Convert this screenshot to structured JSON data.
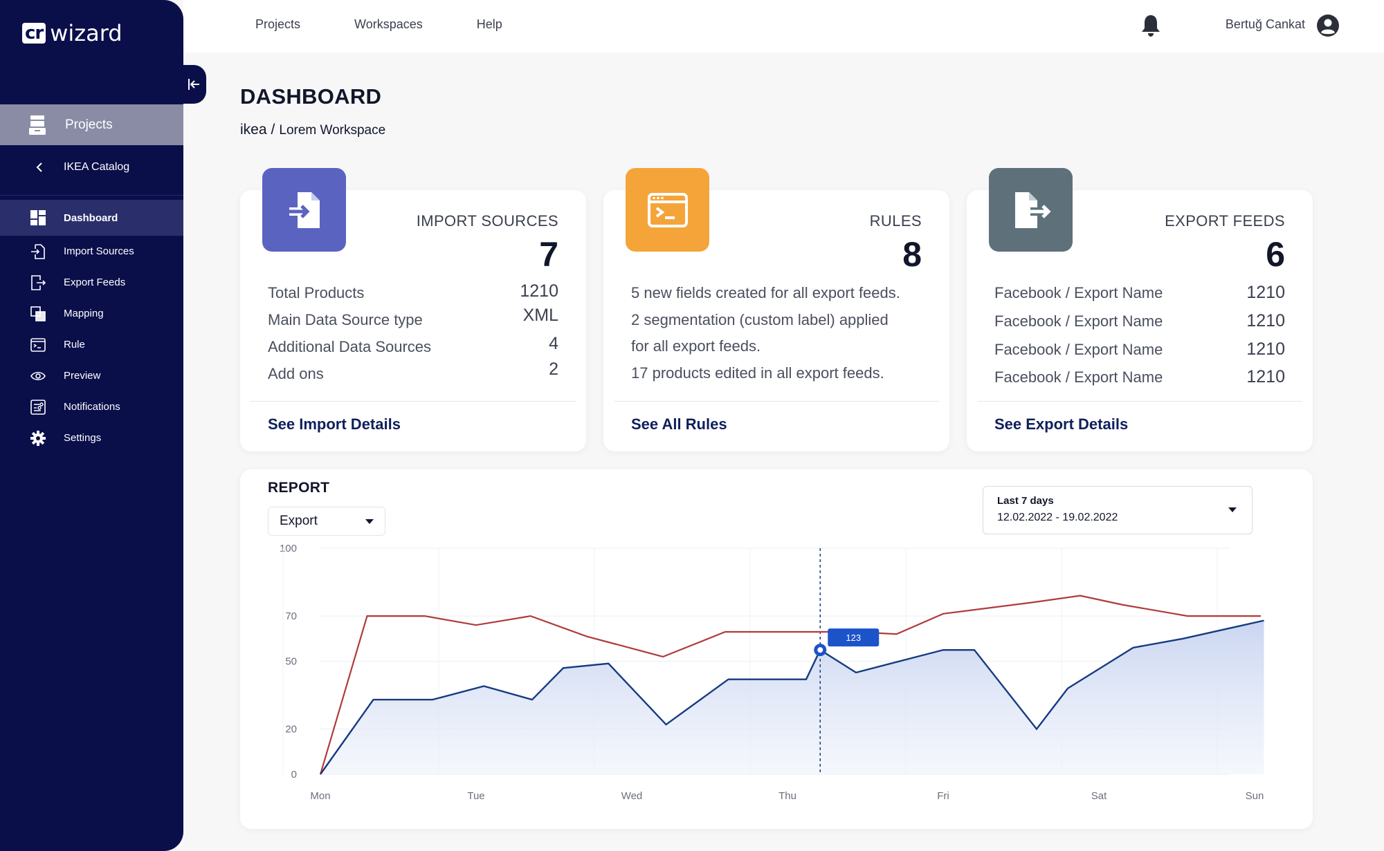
{
  "app": {
    "logo_box": "cr",
    "logo_text": "wizard"
  },
  "sidebar": {
    "projects_label": "Projects",
    "catalog_label": "IKEA Catalog",
    "items": [
      {
        "label": "Dashboard",
        "icon": "dashboard-icon",
        "active": true
      },
      {
        "label": "Import Sources",
        "icon": "import-icon"
      },
      {
        "label": "Export Feeds",
        "icon": "export-icon"
      },
      {
        "label": "Mapping",
        "icon": "mapping-icon"
      },
      {
        "label": "Rule",
        "icon": "rule-icon"
      },
      {
        "label": "Preview",
        "icon": "eye-icon"
      },
      {
        "label": "Notifications",
        "icon": "notifications-icon"
      },
      {
        "label": "Settings",
        "icon": "gear-icon"
      }
    ]
  },
  "topbar": {
    "nav": [
      "Projects",
      "Workspaces",
      "Help"
    ],
    "user_name": "Bertuğ Cankat"
  },
  "header": {
    "title": "DASHBOARD",
    "breadcrumb_project": "ikea",
    "breadcrumb_sep": "/",
    "breadcrumb_workspace": "Lorem Workspace"
  },
  "cards": {
    "import": {
      "title": "IMPORT SOURCES",
      "count": "7",
      "rows": [
        {
          "label": "Total Products",
          "value": "1210"
        },
        {
          "label": "Main Data Source type",
          "value": "XML"
        },
        {
          "label": "Additional Data Sources",
          "value": "4"
        },
        {
          "label": "Add ons",
          "value": "2"
        }
      ],
      "link": "See Import Details",
      "color": "#5b63c0"
    },
    "rules": {
      "title": "RULES",
      "count": "8",
      "lines": [
        "5 new fields created for all export feeds.",
        "2 segmentation (custom label) applied",
        "for all export feeds.",
        "17 products edited in all export feeds."
      ],
      "link": "See All Rules",
      "color": "#f5a43a"
    },
    "export": {
      "title": "EXPORT FEEDS",
      "count": "6",
      "rows": [
        {
          "label": "Facebook / Export Name",
          "value": "1210"
        },
        {
          "label": "Facebook / Export Name",
          "value": "1210"
        },
        {
          "label": "Facebook / Export Name",
          "value": "1210"
        },
        {
          "label": "Facebook / Export Name",
          "value": "1210"
        }
      ],
      "link": "See Export Details",
      "color": "#5e717b"
    }
  },
  "report": {
    "title": "REPORT",
    "type_select": "Export",
    "date_label": "Last 7 days",
    "date_range": "12.02.2022 - 19.02.2022"
  },
  "chart_data": {
    "type": "area",
    "categories": [
      "Mon",
      "Tue",
      "Wed",
      "Thu",
      "Fri",
      "Sat",
      "Sun"
    ],
    "yticks": [
      100,
      70,
      50,
      20,
      0
    ],
    "ylim": [
      0,
      100
    ],
    "series": [
      {
        "color": "#b03a3a",
        "x": [
          0,
          0.3,
          0.67,
          1.0,
          1.35,
          1.71,
          2.2,
          2.6,
          3.0,
          3.43,
          3.7,
          4.0,
          4.57,
          4.88,
          5.15,
          5.57,
          6.04
        ],
        "y": [
          0,
          70,
          70,
          66,
          70,
          61,
          52,
          63,
          63,
          63,
          62,
          71,
          76,
          79,
          75,
          70,
          70
        ]
      },
      {
        "color": "#163a82",
        "x": [
          0,
          0.34,
          0.72,
          1.05,
          1.36,
          1.56,
          1.85,
          2.22,
          2.62,
          3.12,
          3.21,
          3.44,
          4.0,
          4.2,
          4.6,
          4.8,
          5.22,
          5.54,
          6.06
        ],
        "y": [
          0,
          33,
          33,
          39,
          33,
          47,
          49,
          22,
          42,
          42,
          55,
          45,
          55,
          55,
          20,
          38,
          56,
          60,
          68
        ]
      }
    ],
    "marker": {
      "x": 3.21,
      "y": 55,
      "label": "123"
    },
    "guide_x": 3.21,
    "grid": true
  }
}
